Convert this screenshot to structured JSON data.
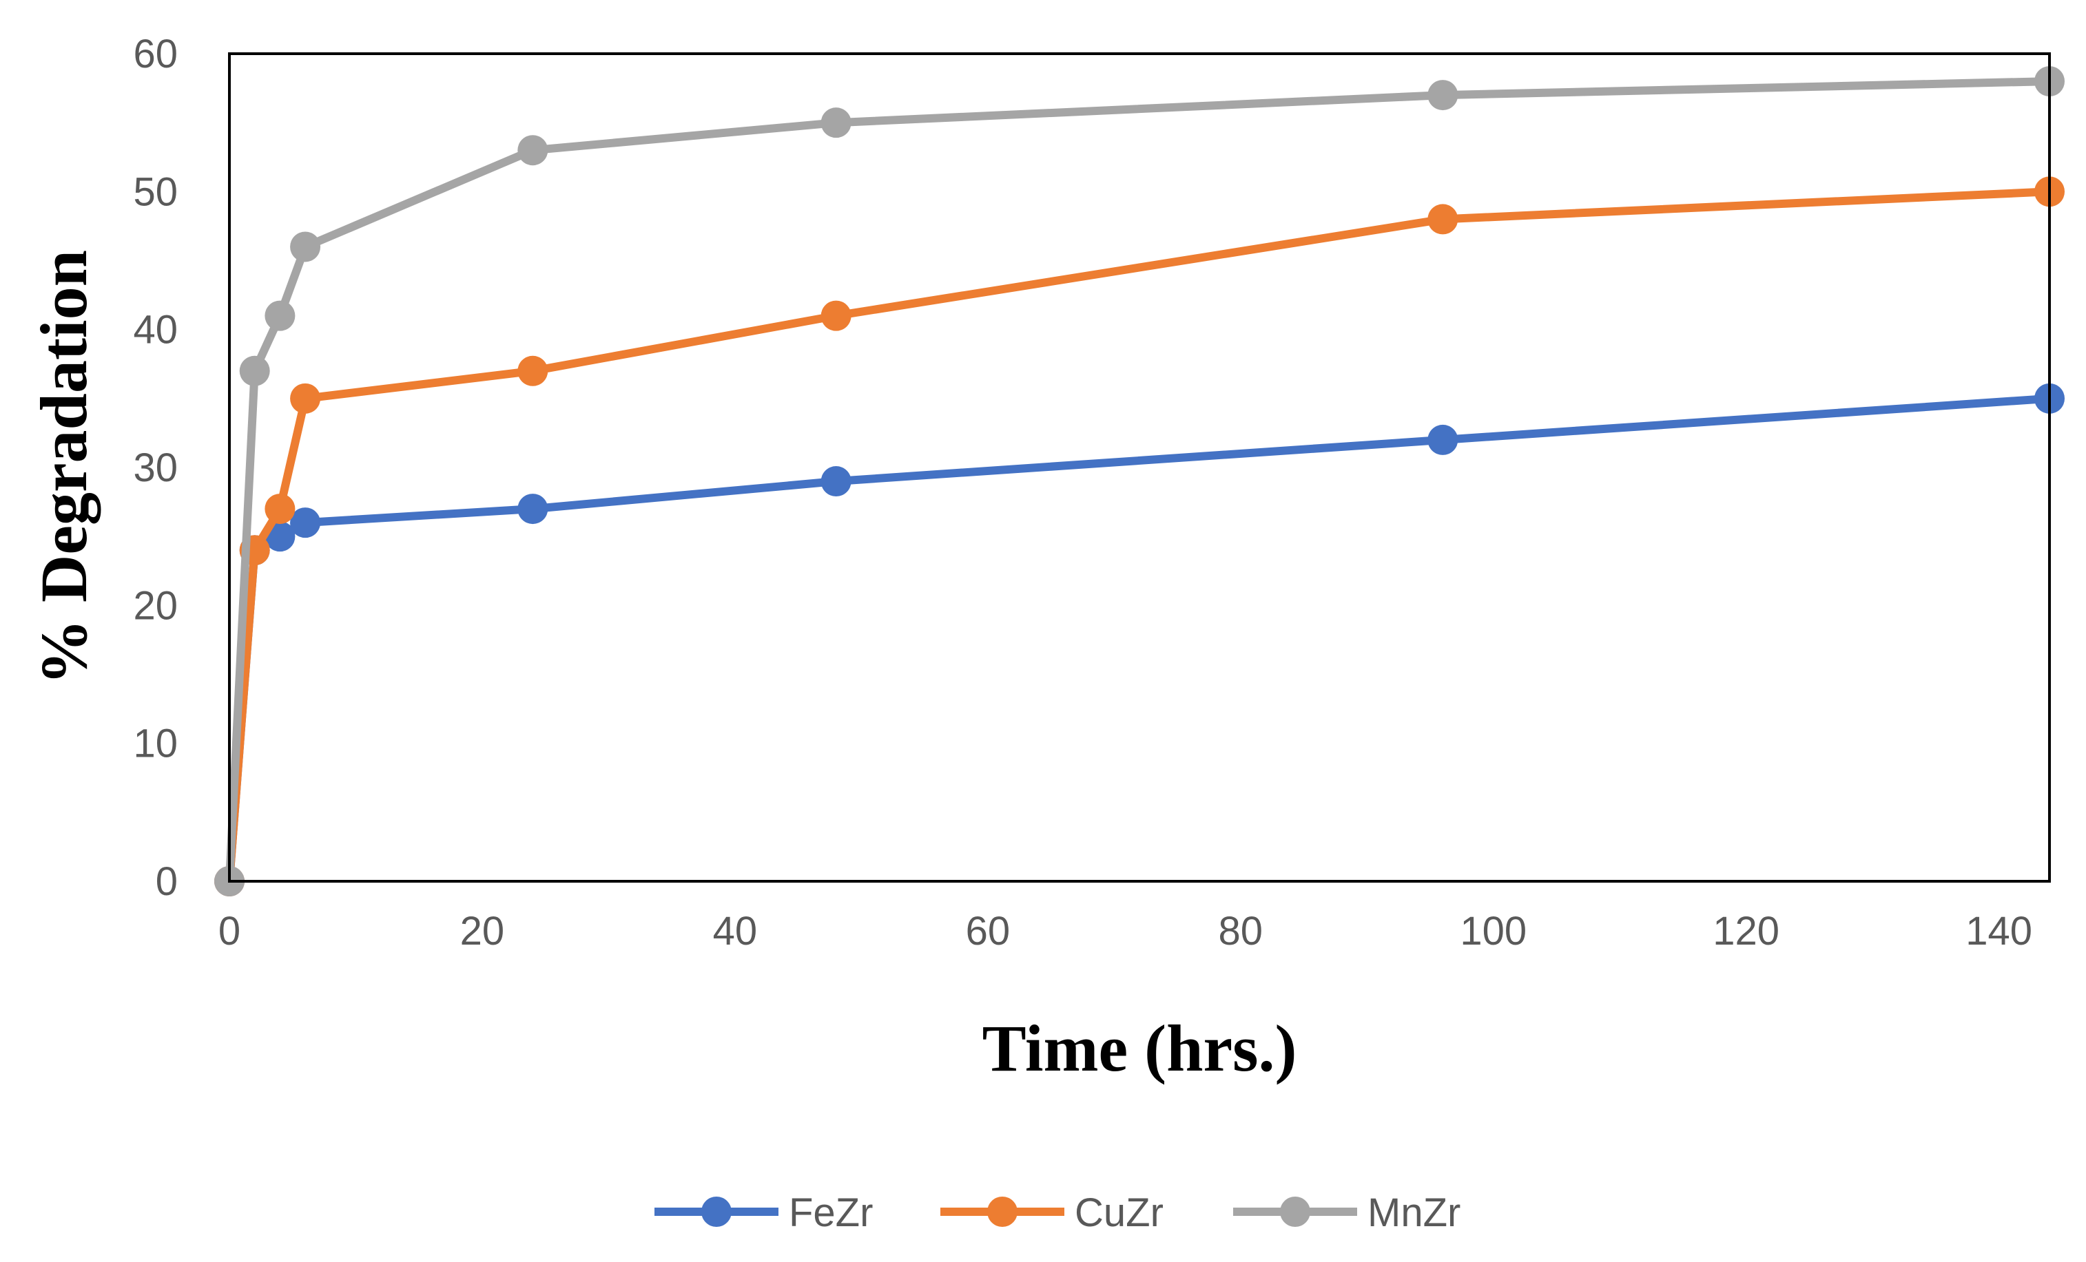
{
  "chart_data": {
    "type": "line",
    "title": "",
    "xlabel": "Time (hrs.)",
    "ylabel": "% Degradation",
    "xlim": [
      0,
      144
    ],
    "ylim": [
      0,
      60
    ],
    "xticks": [
      0,
      20,
      40,
      60,
      80,
      100,
      120,
      140
    ],
    "yticks": [
      0,
      10,
      20,
      30,
      40,
      50,
      60
    ],
    "grid": false,
    "legend_position": "bottom",
    "series": [
      {
        "name": "FeZr",
        "color": "#4472C4",
        "points": [
          [
            0,
            0
          ],
          [
            2,
            24
          ],
          [
            4,
            25
          ],
          [
            6,
            26
          ],
          [
            24,
            27
          ],
          [
            48,
            29
          ],
          [
            96,
            32
          ],
          [
            144,
            35
          ]
        ]
      },
      {
        "name": "CuZr",
        "color": "#ED7D31",
        "points": [
          [
            0,
            0
          ],
          [
            2,
            24
          ],
          [
            4,
            27
          ],
          [
            6,
            35
          ],
          [
            24,
            37
          ],
          [
            48,
            41
          ],
          [
            96,
            48
          ],
          [
            144,
            50
          ]
        ]
      },
      {
        "name": "MnZr",
        "color": "#A5A5A5",
        "points": [
          [
            0,
            0
          ],
          [
            2,
            37
          ],
          [
            4,
            41
          ],
          [
            6,
            46
          ],
          [
            24,
            53
          ],
          [
            48,
            55
          ],
          [
            96,
            57
          ],
          [
            144,
            58
          ]
        ]
      }
    ]
  }
}
